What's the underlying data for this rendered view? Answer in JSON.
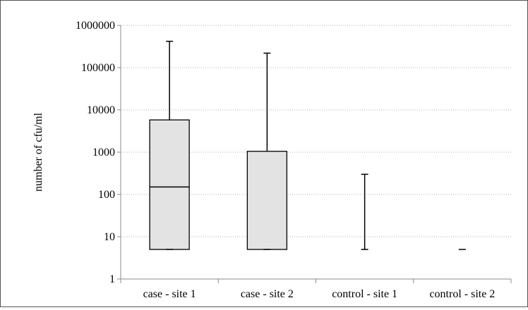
{
  "chart_data": {
    "type": "box",
    "scale": "log10",
    "ylabel": "number of cfu/ml",
    "ylim": [
      1,
      1000000
    ],
    "yticks": [
      "1",
      "10",
      "100",
      "1000",
      "10000",
      "100000",
      "1000000"
    ],
    "grid": true,
    "fill_color": "#e3e3e3",
    "categories": [
      "case - site 1",
      "case - site 2",
      "control - site 1",
      "control - site 2"
    ],
    "boxes": [
      {
        "name": "case - site 1",
        "min": 5,
        "q1": 5,
        "median": 150,
        "q3": 5800,
        "max": 420000
      },
      {
        "name": "case - site 2",
        "min": 5,
        "q1": 5,
        "median": 5,
        "q3": 1050,
        "max": 220000
      },
      {
        "name": "control - site 1",
        "min": 5,
        "q1": 5,
        "median": 5,
        "q3": 5,
        "max": 300
      },
      {
        "name": "control - site 2",
        "min": 5,
        "q1": 5,
        "median": 5,
        "q3": 5,
        "max": 5
      }
    ]
  }
}
